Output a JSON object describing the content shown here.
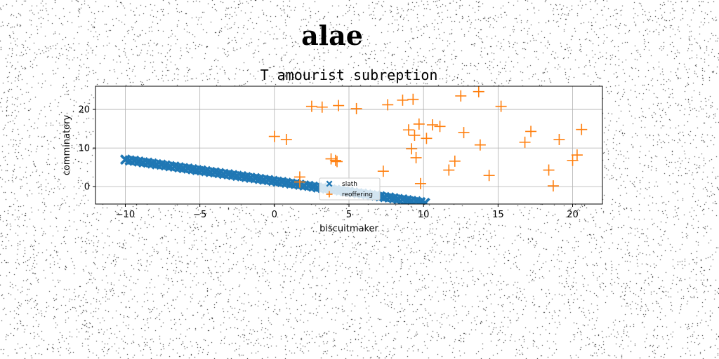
{
  "suptitle": "alae",
  "chart_data": {
    "type": "scatter",
    "title": "T amourist subreption",
    "xlabel": "biscuitmaker",
    "ylabel": "comminatory",
    "xlim": [
      -12.0,
      22.0
    ],
    "ylim": [
      -4.5,
      26.0
    ],
    "xticks": [
      -10,
      -5,
      0,
      5,
      10,
      15,
      20
    ],
    "yticks": [
      0,
      10,
      20
    ],
    "grid": true,
    "legend": {
      "placement": "lower-center"
    },
    "colors": {
      "slath": "#1f77b4",
      "reoffering": "#ff7f0e"
    },
    "series": [
      {
        "name": "slath",
        "marker": "X",
        "x": [
          -10.0,
          -9.7,
          -9.4,
          -9.1,
          -8.8,
          -8.5,
          -8.2,
          -7.9,
          -7.6,
          -7.3,
          -7.0,
          -6.7,
          -6.4,
          -6.1,
          -5.8,
          -5.5,
          -5.2,
          -4.9,
          -4.6,
          -4.3,
          -4.0,
          -3.7,
          -3.4,
          -3.1,
          -2.8,
          -2.5,
          -2.2,
          -1.9,
          -1.6,
          -1.3,
          -1.0,
          -0.7,
          -0.4,
          -0.1,
          0.2,
          0.5,
          0.8,
          1.1,
          1.4,
          1.7,
          2.0,
          2.3,
          2.6,
          2.9,
          3.2,
          3.5,
          3.8,
          4.1,
          4.4,
          4.7,
          5.0,
          5.3,
          5.6,
          5.9,
          6.2,
          6.5,
          6.8,
          7.1,
          7.4,
          7.7,
          8.0,
          8.3,
          8.6,
          8.9,
          9.2,
          9.5,
          9.8,
          10.1
        ],
        "y": [
          7.0,
          6.8,
          6.7,
          6.5,
          6.3,
          6.2,
          6.0,
          5.8,
          5.7,
          5.5,
          5.3,
          5.2,
          5.0,
          4.8,
          4.7,
          4.5,
          4.3,
          4.2,
          4.0,
          3.8,
          3.7,
          3.5,
          3.3,
          3.2,
          3.0,
          2.8,
          2.7,
          2.5,
          2.3,
          2.2,
          2.0,
          1.8,
          1.7,
          1.5,
          1.3,
          1.2,
          1.0,
          0.8,
          0.7,
          0.5,
          0.3,
          0.2,
          0.0,
          -0.2,
          -0.3,
          -0.5,
          -0.7,
          -0.8,
          -1.0,
          -1.2,
          -1.3,
          -1.5,
          -1.7,
          -1.8,
          -2.0,
          -2.2,
          -2.3,
          -2.5,
          -2.7,
          -2.8,
          -3.0,
          -3.2,
          -3.3,
          -3.5,
          -3.7,
          -3.8,
          -4.0,
          -4.2
        ]
      },
      {
        "name": "reoffering",
        "marker": "+",
        "x": [
          0.0,
          0.8,
          1.7,
          1.7,
          2.5,
          3.2,
          3.8,
          4.1,
          4.3,
          4.2,
          5.5,
          7.3,
          7.6,
          8.6,
          9.2,
          9.0,
          9.3,
          9.7,
          9.4,
          9.5,
          9.8,
          10.2,
          10.6,
          11.1,
          11.7,
          12.1,
          12.5,
          12.7,
          13.7,
          13.8,
          14.4,
          15.2,
          16.8,
          17.2,
          18.4,
          18.7,
          19.1,
          20.0,
          20.3,
          20.6
        ],
        "y": [
          13.0,
          12.2,
          2.5,
          1.2,
          20.8,
          20.6,
          7.2,
          6.8,
          21.0,
          6.5,
          20.2,
          4.0,
          21.2,
          22.4,
          9.8,
          14.7,
          22.6,
          16.2,
          13.3,
          7.5,
          0.8,
          12.5,
          16.0,
          15.6,
          4.3,
          6.6,
          23.5,
          14.0,
          24.6,
          10.8,
          2.9,
          20.8,
          11.5,
          14.3,
          4.3,
          0.2,
          12.2,
          6.8,
          8.2,
          14.8
        ]
      }
    ]
  }
}
